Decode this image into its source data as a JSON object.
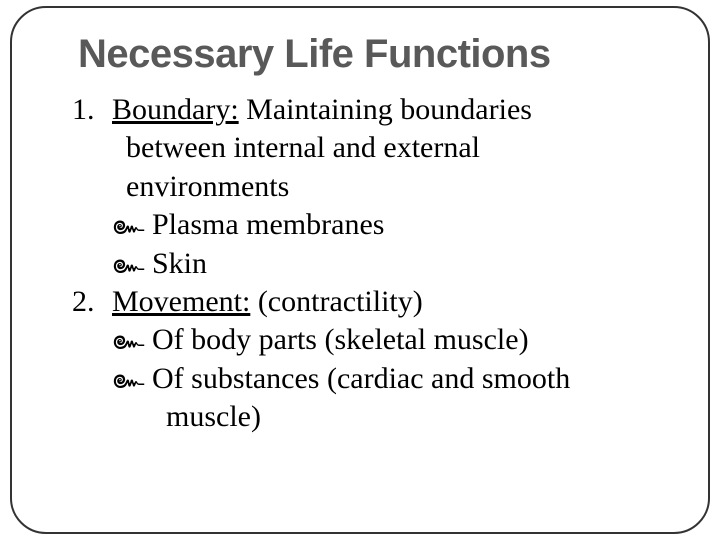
{
  "slide": {
    "title": "Necessary Life Functions",
    "title_color": "#595959",
    "title_fontsize": 40,
    "title_fontfamily": "Arial Black",
    "body_fontsize": 30,
    "body_fontfamily": "Times New Roman",
    "body_color": "#000000",
    "frame_border_color": "#333333",
    "frame_border_radius": 36,
    "background_color": "#ffffff",
    "bullet_glyph": "་",
    "items": [
      {
        "number": "1.",
        "term": "Boundary:",
        "rest_first": "  Maintaining boundaries",
        "cont_lines": [
          "between internal and  external",
          "environments"
        ],
        "bullets": [
          {
            "text": "Plasma membranes",
            "cont": []
          },
          {
            "text": "Skin",
            "cont": []
          }
        ]
      },
      {
        "number": "2.",
        "term": "Movement:",
        "rest_first": " (contractility)",
        "cont_lines": [],
        "bullets": [
          {
            "text": "Of body parts (skeletal muscle)",
            "cont": []
          },
          {
            "text": "Of substances (cardiac and smooth",
            "cont": [
              "muscle)"
            ]
          }
        ]
      }
    ]
  }
}
